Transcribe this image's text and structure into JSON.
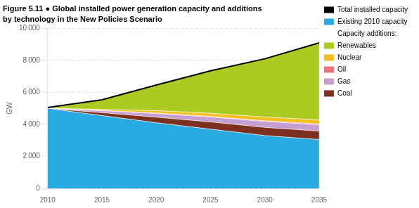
{
  "chart_data": {
    "type": "area",
    "title": "Figure 5.11 ● Global installed power generation capacity and additions",
    "subtitle": "by technology in the New Policies Scenario",
    "ylabel": "GW",
    "stacked": true,
    "grid": true,
    "legend": "right",
    "annotations": [
      "Capacity additions:"
    ],
    "x": [
      2010,
      2015,
      2020,
      2025,
      2030,
      2035
    ],
    "xlim": [
      2010,
      2035
    ],
    "xticks": [
      2010,
      2015,
      2020,
      2025,
      2030,
      2035
    ],
    "ylim": [
      0,
      10000
    ],
    "yticks": [
      0,
      {
        "value": 2000,
        "label": "2 000"
      },
      {
        "value": 4000,
        "label": "4 000"
      },
      {
        "value": 6000,
        "label": "6 000"
      },
      {
        "value": 8000,
        "label": "8 000"
      },
      {
        "value": 10000,
        "label": "10 000"
      }
    ],
    "series": [
      {
        "name": "Existing 2010 capacity",
        "color": "#29ABE2",
        "values": [
          5000,
          4550,
          4100,
          3700,
          3300,
          3050
        ]
      },
      {
        "name": "Coal",
        "color": "#7B3020",
        "values": [
          0,
          180,
          350,
          450,
          510,
          530
        ]
      },
      {
        "name": "Gas",
        "color": "#C49FD0",
        "values": [
          0,
          120,
          230,
          310,
          370,
          400
        ]
      },
      {
        "name": "Oil",
        "color": "#F07080",
        "values": [
          0,
          15,
          25,
          35,
          40,
          40
        ]
      },
      {
        "name": "Nuclear",
        "color": "#F0C020",
        "values": [
          0,
          70,
          150,
          200,
          240,
          260
        ]
      },
      {
        "name": "Renewables",
        "color": "#AACC22",
        "values": [
          0,
          600,
          1600,
          2650,
          3640,
          4820
        ]
      },
      {
        "name": "Total installed capacity",
        "type": "line",
        "color": "#000000",
        "values": [
          5050,
          5535,
          6455,
          7345,
          8100,
          9100
        ]
      }
    ]
  }
}
